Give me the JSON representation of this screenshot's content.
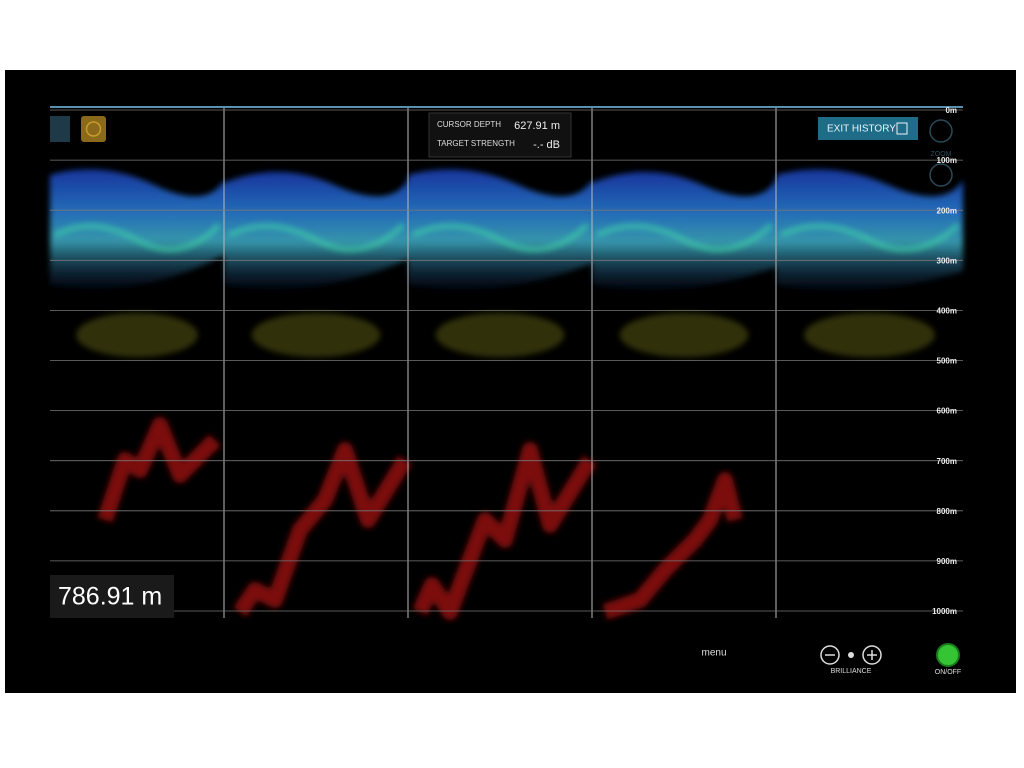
{
  "cursor_panel": {
    "depth_label": "CURSOR DEPTH",
    "depth_value": "627.91 m",
    "strength_label": "TARGET STRENGTH",
    "strength_value": "-.- dB"
  },
  "exit_button": "EXIT HISTORY",
  "zoom_label": "ZOOM",
  "depth_scale": [
    {
      "value": 0,
      "label": "0m"
    },
    {
      "value": 100,
      "label": "100m"
    },
    {
      "value": 200,
      "label": "200m"
    },
    {
      "value": 300,
      "label": "300m"
    },
    {
      "value": 400,
      "label": "400m"
    },
    {
      "value": 500,
      "label": "500m"
    },
    {
      "value": 600,
      "label": "600m"
    },
    {
      "value": 700,
      "label": "700m"
    },
    {
      "value": 800,
      "label": "800m"
    },
    {
      "value": 900,
      "label": "900m"
    },
    {
      "value": 1000,
      "label": "1000m"
    }
  ],
  "depth_readout": "786.91 m",
  "controls": {
    "menu": "menu",
    "brilliance": "BRILLIANCE",
    "power": "ON/OFF"
  }
}
